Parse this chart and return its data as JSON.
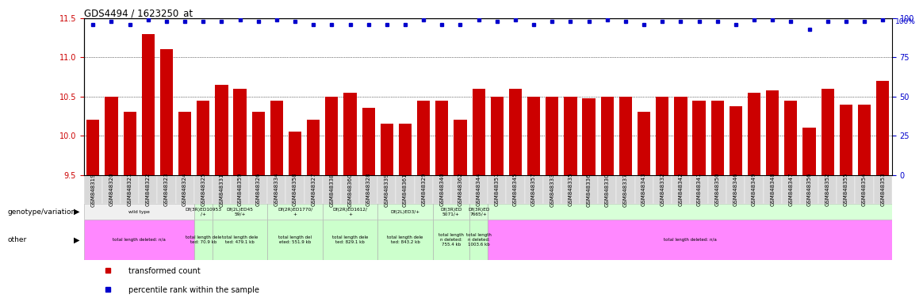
{
  "title": "GDS4494 / 1623250_at",
  "samples": [
    "GSM848319",
    "GSM848320",
    "GSM848321",
    "GSM848322",
    "GSM848323",
    "GSM848324",
    "GSM848325",
    "GSM848331",
    "GSM848359",
    "GSM848326",
    "GSM848334",
    "GSM848358",
    "GSM848327",
    "GSM848338",
    "GSM848360",
    "GSM848328",
    "GSM848339",
    "GSM848361",
    "GSM848329",
    "GSM848340",
    "GSM848362",
    "GSM848344",
    "GSM848351",
    "GSM848345",
    "GSM848357",
    "GSM848333",
    "GSM848335",
    "GSM848336",
    "GSM848330",
    "GSM848337",
    "GSM848343",
    "GSM848332",
    "GSM848342",
    "GSM848341",
    "GSM848350",
    "GSM848346",
    "GSM848349",
    "GSM848348",
    "GSM848347",
    "GSM848356",
    "GSM848352",
    "GSM848355",
    "GSM848354",
    "GSM848353"
  ],
  "bar_values": [
    10.2,
    10.5,
    10.3,
    11.3,
    11.1,
    10.3,
    10.45,
    10.65,
    10.6,
    10.3,
    10.45,
    10.05,
    10.2,
    10.5,
    10.55,
    10.35,
    10.15,
    10.15,
    10.45,
    10.45,
    10.2,
    10.6,
    10.5,
    10.6,
    10.5,
    10.5,
    10.5,
    10.48,
    10.5,
    10.5,
    10.3,
    10.5,
    10.5,
    10.45,
    10.45,
    10.38,
    10.55,
    10.58,
    10.45,
    10.1,
    10.6,
    10.4,
    10.4,
    10.7
  ],
  "percentile_values": [
    96,
    98,
    96,
    99,
    98,
    98,
    98,
    98,
    99,
    98,
    99,
    98,
    96,
    96,
    96,
    96,
    96,
    96,
    99,
    96,
    96,
    99,
    98,
    99,
    96,
    98,
    98,
    98,
    99,
    98,
    96,
    98,
    98,
    98,
    98,
    96,
    99,
    99,
    98,
    93,
    98,
    98,
    98,
    99
  ],
  "ylim_left": [
    9.5,
    11.5
  ],
  "ylim_right": [
    0,
    100
  ],
  "yticks_left": [
    9.5,
    10.0,
    10.5,
    11.0,
    11.5
  ],
  "yticks_right": [
    0,
    25,
    50,
    75,
    100
  ],
  "bar_color": "#cc0000",
  "dot_color": "#0000cc",
  "bg_color": "#ffffff",
  "xtick_bg_color": "#d8d8d8",
  "genotype_bg_wt": "#f0f0f0",
  "genotype_bg_df": "#d8ffd8",
  "other_bg_na": "#ff88ff",
  "other_bg_df": "#ccffcc",
  "groups_geno": [
    {
      "start": 0,
      "end": 5,
      "color": "#f0f0f0",
      "label": "wild type"
    },
    {
      "start": 6,
      "end": 6,
      "color": "#d8ffd8",
      "label": "Df(3R)ED10953\n/+"
    },
    {
      "start": 7,
      "end": 9,
      "color": "#d8ffd8",
      "label": "Df(2L)ED45\n59/+"
    },
    {
      "start": 10,
      "end": 12,
      "color": "#d8ffd8",
      "label": "Df(2R)ED1770/\n+"
    },
    {
      "start": 13,
      "end": 15,
      "color": "#d8ffd8",
      "label": "Df(2R)ED1612/\n+"
    },
    {
      "start": 16,
      "end": 18,
      "color": "#d8ffd8",
      "label": "Df(2L)ED3/+"
    },
    {
      "start": 19,
      "end": 20,
      "color": "#d8ffd8",
      "label": "Df(3R)ED\n5071/+"
    },
    {
      "start": 21,
      "end": 21,
      "color": "#d8ffd8",
      "label": "Df(3R)ED\n7665/+"
    },
    {
      "start": 22,
      "end": 43,
      "color": "#d8ffd8",
      "label": ""
    }
  ],
  "groups_other": [
    {
      "start": 0,
      "end": 5,
      "color": "#ff88ff",
      "label": "total length deleted: n/a"
    },
    {
      "start": 6,
      "end": 6,
      "color": "#ccffcc",
      "label": "total length dele\nted: 70.9 kb"
    },
    {
      "start": 7,
      "end": 9,
      "color": "#ccffcc",
      "label": "total length dele\nted: 479.1 kb"
    },
    {
      "start": 10,
      "end": 12,
      "color": "#ccffcc",
      "label": "total length del\neted: 551.9 kb"
    },
    {
      "start": 13,
      "end": 15,
      "color": "#ccffcc",
      "label": "total length dele\nted: 829.1 kb"
    },
    {
      "start": 16,
      "end": 18,
      "color": "#ccffcc",
      "label": "total length dele\nted: 843.2 kb"
    },
    {
      "start": 19,
      "end": 20,
      "color": "#ccffcc",
      "label": "total length\nn deleted:\n755.4 kb"
    },
    {
      "start": 21,
      "end": 21,
      "color": "#ccffcc",
      "label": "total length\nn deleted:\n1003.6 kb"
    },
    {
      "start": 22,
      "end": 43,
      "color": "#ff88ff",
      "label": "total length deleted: n/a"
    }
  ]
}
